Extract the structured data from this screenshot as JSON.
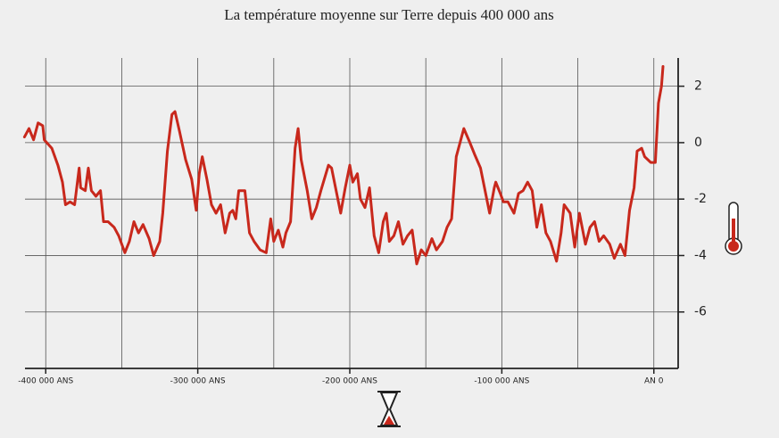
{
  "chart_data": {
    "type": "line",
    "title": "La température moyenne sur Terre depuis 400 000 ans",
    "x": [
      -414000,
      -411000,
      -408000,
      -405000,
      -402000,
      -401000,
      -396000,
      -392000,
      -389000,
      -387000,
      -384000,
      -381000,
      -378000,
      -377000,
      -374000,
      -372000,
      -370000,
      -367000,
      -364000,
      -362000,
      -359000,
      -355000,
      -352000,
      -348000,
      -345000,
      -342000,
      -339000,
      -336000,
      -332000,
      -329000,
      -325000,
      -323000,
      -320000,
      -317000,
      -315000,
      -312000,
      -308000,
      -304000,
      -301000,
      -299000,
      -297000,
      -294000,
      -291000,
      -288000,
      -285000,
      -282000,
      -279000,
      -277000,
      -275000,
      -273000,
      -269000,
      -266000,
      -263000,
      -259000,
      -255000,
      -252000,
      -250000,
      -247000,
      -244000,
      -242000,
      -239000,
      -236000,
      -234000,
      -232000,
      -228000,
      -225000,
      -222000,
      -219000,
      -214000,
      -212000,
      -209000,
      -206000,
      -203000,
      -200000,
      -198000,
      -195000,
      -193000,
      -190000,
      -187000,
      -184000,
      -181000,
      -178000,
      -176000,
      -174000,
      -171000,
      -168000,
      -165000,
      -162000,
      -159000,
      -156000,
      -153000,
      -150000,
      -146000,
      -143000,
      -139000,
      -136000,
      -133000,
      -130000,
      -125000,
      -121000,
      -118000,
      -114000,
      -111000,
      -108000,
      -105000,
      -104000,
      -101000,
      -99000,
      -96000,
      -92000,
      -89000,
      -86000,
      -83000,
      -80000,
      -77000,
      -74000,
      -71000,
      -68000,
      -64000,
      -61000,
      -59000,
      -55000,
      -52000,
      -49000,
      -45000,
      -42000,
      -39000,
      -36000,
      -33000,
      -29000,
      -26000,
      -22000,
      -19000,
      -16000,
      -13000,
      -11000,
      -8000,
      -6000,
      -2000,
      1000,
      3000,
      5000,
      6000
    ],
    "series": [
      {
        "name": "Température",
        "color": "#c8281c",
        "values": [
          0.2,
          0.5,
          0.1,
          0.7,
          0.6,
          0.1,
          -0.2,
          -0.8,
          -1.4,
          -2.2,
          -2.1,
          -2.2,
          -0.9,
          -1.6,
          -1.7,
          -0.9,
          -1.7,
          -1.9,
          -1.7,
          -2.8,
          -2.8,
          -3.0,
          -3.3,
          -3.9,
          -3.5,
          -2.8,
          -3.2,
          -2.9,
          -3.4,
          -4.0,
          -3.5,
          -2.5,
          -0.3,
          1.0,
          1.1,
          0.4,
          -0.6,
          -1.3,
          -2.4,
          -1.1,
          -0.5,
          -1.3,
          -2.2,
          -2.5,
          -2.2,
          -3.2,
          -2.5,
          -2.4,
          -2.7,
          -1.7,
          -1.7,
          -3.2,
          -3.5,
          -3.8,
          -3.9,
          -2.7,
          -3.5,
          -3.1,
          -3.7,
          -3.2,
          -2.8,
          -0.2,
          0.5,
          -0.6,
          -1.7,
          -2.7,
          -2.3,
          -1.7,
          -0.8,
          -0.9,
          -1.7,
          -2.5,
          -1.6,
          -0.8,
          -1.4,
          -1.1,
          -2.0,
          -2.3,
          -1.6,
          -3.3,
          -3.9,
          -2.8,
          -2.5,
          -3.5,
          -3.3,
          -2.8,
          -3.6,
          -3.3,
          -3.1,
          -4.3,
          -3.8,
          -4.0,
          -3.4,
          -3.8,
          -3.5,
          -3.0,
          -2.7,
          -0.5,
          0.5,
          0.0,
          -0.4,
          -0.9,
          -1.7,
          -2.5,
          -1.6,
          -1.4,
          -1.8,
          -2.1,
          -2.1,
          -2.5,
          -1.8,
          -1.7,
          -1.4,
          -1.7,
          -3.0,
          -2.2,
          -3.2,
          -3.5,
          -4.2,
          -3.2,
          -2.2,
          -2.5,
          -3.7,
          -2.5,
          -3.6,
          -3.0,
          -2.8,
          -3.5,
          -3.3,
          -3.6,
          -4.1,
          -3.6,
          -4.0,
          -2.4,
          -1.6,
          -0.3,
          -0.2,
          -0.5,
          -0.7,
          -0.7,
          1.4,
          2.0,
          2.7
        ]
      }
    ],
    "xlim": [
      -416000,
      16000
    ],
    "xticks": [
      {
        "value": -400000,
        "label": "-400 000 ANS"
      },
      {
        "value": -300000,
        "label": "-300 000 ANS"
      },
      {
        "value": -200000,
        "label": "-200 000 ANS"
      },
      {
        "value": -100000,
        "label": "-100 000 ANS"
      },
      {
        "value": 0,
        "label": "AN 0"
      }
    ],
    "x_minor_ticks": [
      -350000,
      -250000,
      -150000,
      -50000
    ],
    "ylim": [
      -8,
      3
    ],
    "yticks": [
      2,
      0,
      -2,
      -4,
      -6
    ],
    "grid": true
  }
}
